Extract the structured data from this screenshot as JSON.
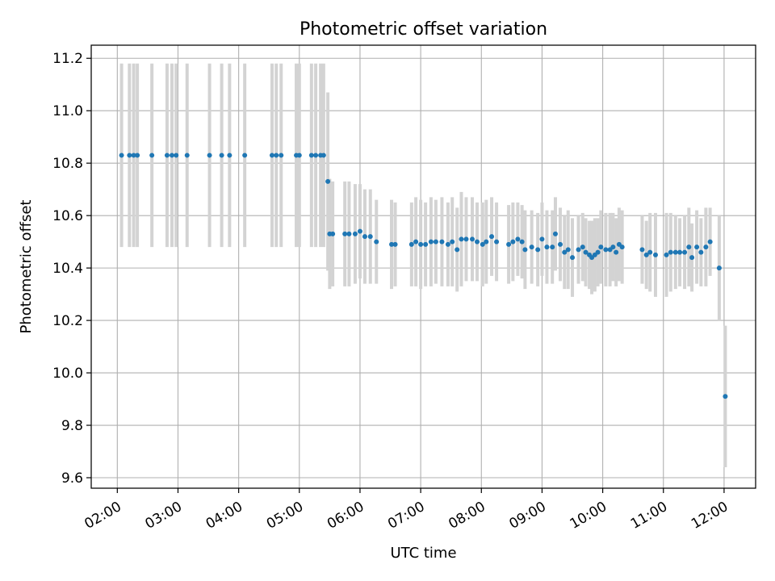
{
  "chart_data": {
    "type": "scatter",
    "title": "Photometric offset variation",
    "xlabel": "UTC time",
    "ylabel": "Photometric offset",
    "xlim": [
      1.57,
      12.52
    ],
    "ylim": [
      9.56,
      11.25
    ],
    "yticks": [
      9.6,
      9.8,
      10.0,
      10.2,
      10.4,
      10.6,
      10.8,
      11.0,
      11.2
    ],
    "ytick_labels": [
      "9.6",
      "9.8",
      "10.0",
      "10.2",
      "10.4",
      "10.6",
      "10.8",
      "11.0",
      "11.2"
    ],
    "xticks": [
      2,
      3,
      4,
      5,
      6,
      7,
      8,
      9,
      10,
      11,
      12
    ],
    "xtick_labels": [
      "02:00",
      "03:00",
      "04:00",
      "05:00",
      "06:00",
      "07:00",
      "08:00",
      "09:00",
      "10:00",
      "11:00",
      "12:00"
    ],
    "x_units": "hours UTC",
    "grid": true,
    "point_color": "#1f77b4",
    "errorbar_color": "#d3d3d3",
    "series": [
      {
        "name": "Photometric offset",
        "x": [
          2.07,
          2.2,
          2.27,
          2.33,
          2.57,
          2.82,
          2.9,
          2.97,
          3.15,
          3.52,
          3.72,
          3.85,
          4.1,
          4.55,
          4.62,
          4.7,
          4.95,
          5.0,
          5.2,
          5.27,
          5.35,
          5.4,
          5.47,
          5.5,
          5.55,
          5.75,
          5.82,
          5.92,
          6.0,
          6.08,
          6.17,
          6.27,
          6.52,
          6.58,
          6.85,
          6.92,
          7.0,
          7.08,
          7.17,
          7.25,
          7.35,
          7.45,
          7.52,
          7.6,
          7.67,
          7.75,
          7.85,
          7.93,
          8.02,
          8.08,
          8.17,
          8.25,
          8.45,
          8.52,
          8.6,
          8.67,
          8.72,
          8.83,
          8.93,
          9.0,
          9.08,
          9.17,
          9.22,
          9.3,
          9.37,
          9.43,
          9.5,
          9.6,
          9.67,
          9.72,
          9.78,
          9.82,
          9.87,
          9.92,
          9.97,
          10.05,
          10.12,
          10.17,
          10.22,
          10.27,
          10.32,
          10.65,
          10.72,
          10.78,
          10.87,
          11.05,
          11.12,
          11.2,
          11.27,
          11.35,
          11.42,
          11.47,
          11.55,
          11.62,
          11.7,
          11.77,
          11.92,
          12.02
        ],
        "y": [
          10.83,
          10.83,
          10.83,
          10.83,
          10.83,
          10.83,
          10.83,
          10.83,
          10.83,
          10.83,
          10.83,
          10.83,
          10.83,
          10.83,
          10.83,
          10.83,
          10.83,
          10.83,
          10.83,
          10.83,
          10.83,
          10.83,
          10.73,
          10.53,
          10.53,
          10.53,
          10.53,
          10.53,
          10.54,
          10.52,
          10.52,
          10.5,
          10.49,
          10.49,
          10.49,
          10.5,
          10.49,
          10.49,
          10.5,
          10.5,
          10.5,
          10.49,
          10.5,
          10.47,
          10.51,
          10.51,
          10.51,
          10.5,
          10.49,
          10.5,
          10.52,
          10.5,
          10.49,
          10.5,
          10.51,
          10.5,
          10.47,
          10.48,
          10.47,
          10.51,
          10.48,
          10.48,
          10.53,
          10.49,
          10.46,
          10.47,
          10.44,
          10.47,
          10.48,
          10.46,
          10.45,
          10.44,
          10.45,
          10.46,
          10.48,
          10.47,
          10.47,
          10.48,
          10.46,
          10.49,
          10.48,
          10.47,
          10.45,
          10.46,
          10.45,
          10.45,
          10.46,
          10.46,
          10.46,
          10.46,
          10.48,
          10.44,
          10.48,
          10.46,
          10.48,
          10.5,
          10.4,
          9.91
        ],
        "yerr": [
          0.35,
          0.35,
          0.35,
          0.35,
          0.35,
          0.35,
          0.35,
          0.35,
          0.35,
          0.35,
          0.35,
          0.35,
          0.35,
          0.35,
          0.35,
          0.35,
          0.35,
          0.35,
          0.35,
          0.35,
          0.35,
          0.35,
          0.34,
          0.21,
          0.2,
          0.2,
          0.2,
          0.19,
          0.18,
          0.18,
          0.18,
          0.16,
          0.17,
          0.16,
          0.16,
          0.17,
          0.17,
          0.16,
          0.17,
          0.16,
          0.17,
          0.16,
          0.17,
          0.16,
          0.18,
          0.16,
          0.16,
          0.15,
          0.16,
          0.16,
          0.15,
          0.15,
          0.15,
          0.15,
          0.14,
          0.14,
          0.15,
          0.14,
          0.14,
          0.14,
          0.14,
          0.14,
          0.14,
          0.14,
          0.14,
          0.15,
          0.15,
          0.13,
          0.13,
          0.13,
          0.13,
          0.14,
          0.14,
          0.13,
          0.14,
          0.14,
          0.14,
          0.13,
          0.13,
          0.14,
          0.14,
          0.13,
          0.13,
          0.15,
          0.16,
          0.16,
          0.15,
          0.14,
          0.13,
          0.14,
          0.15,
          0.13,
          0.14,
          0.13,
          0.15,
          0.13,
          0.2,
          0.27
        ]
      }
    ]
  }
}
